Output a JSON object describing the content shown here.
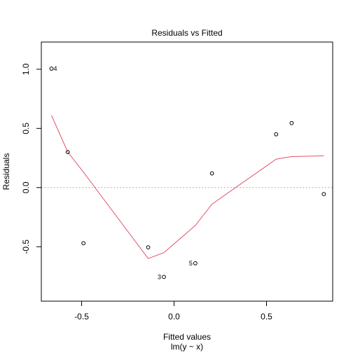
{
  "chart_data": {
    "type": "scatter",
    "title": "Residuals vs Fitted",
    "xlabel": "Fitted values",
    "xlabel_sub": "lm(y ~ x)",
    "ylabel": "Residuals",
    "xlim": [
      -0.718,
      0.858
    ],
    "ylim": [
      -0.96,
      1.23
    ],
    "xticks": [
      -0.5,
      0.0,
      0.5
    ],
    "xtick_labels": [
      "-0.5",
      "0.0",
      "0.5"
    ],
    "yticks": [
      -0.5,
      0.0,
      0.5,
      1.0
    ],
    "ytick_labels": [
      "-0.5",
      "0.0",
      "0.5",
      "1.0"
    ],
    "grid": false,
    "reference_line": {
      "y": 0,
      "style": "dotted",
      "color": "#999999"
    },
    "points": [
      {
        "x": -0.663,
        "y": 1.005,
        "label": "4"
      },
      {
        "x": -0.575,
        "y": 0.3,
        "label": ""
      },
      {
        "x": -0.49,
        "y": -0.47,
        "label": ""
      },
      {
        "x": -0.14,
        "y": -0.505,
        "label": ""
      },
      {
        "x": -0.055,
        "y": -0.755,
        "label": "3"
      },
      {
        "x": 0.115,
        "y": -0.64,
        "label": "5"
      },
      {
        "x": 0.205,
        "y": 0.12,
        "label": ""
      },
      {
        "x": 0.552,
        "y": 0.45,
        "label": ""
      },
      {
        "x": 0.636,
        "y": 0.545,
        "label": ""
      },
      {
        "x": 0.81,
        "y": -0.055,
        "label": ""
      }
    ],
    "smoother": {
      "color": "#DF536B",
      "x": [
        -0.663,
        -0.575,
        -0.49,
        -0.14,
        -0.055,
        0.115,
        0.205,
        0.552,
        0.636,
        0.81
      ],
      "y": [
        0.61,
        0.3,
        0.13,
        -0.6,
        -0.55,
        -0.32,
        -0.14,
        0.24,
        0.262,
        0.268
      ]
    }
  }
}
